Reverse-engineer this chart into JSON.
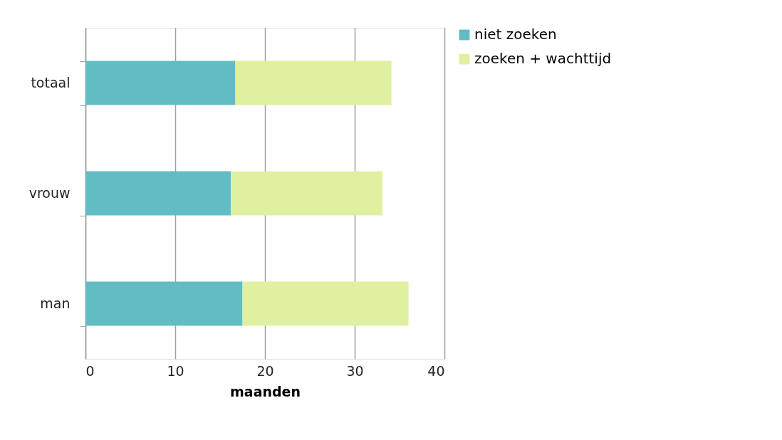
{
  "chart_data": {
    "type": "bar",
    "orientation": "horizontal",
    "stacked": true,
    "xlabel": "maanden",
    "categories": [
      "totaal",
      "vrouw",
      "man"
    ],
    "series": [
      {
        "name": "niet zoeken",
        "color": "#62bcc4",
        "values": [
          16.7,
          16.2,
          17.5
        ]
      },
      {
        "name": "zoeken + wachttijd",
        "color": "#dff0a0",
        "values": [
          17.4,
          16.9,
          18.5
        ]
      }
    ],
    "xlim": [
      0,
      40
    ],
    "xticks": [
      0,
      10,
      20,
      30,
      40
    ],
    "grid": "x",
    "legend": "right"
  }
}
